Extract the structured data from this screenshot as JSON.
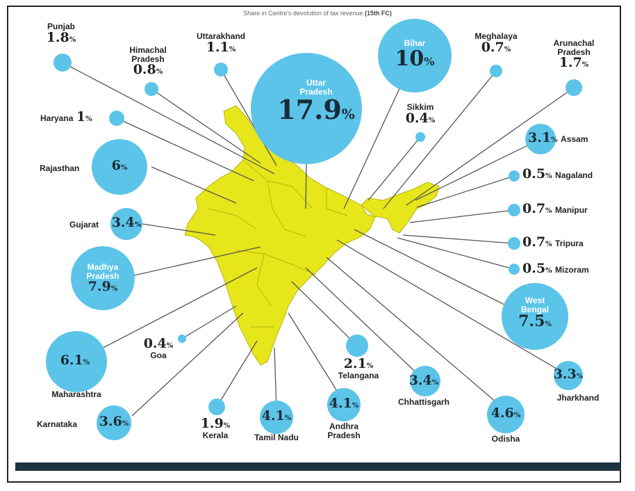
{
  "title": "Share in Centre's devolution of tax revenue",
  "title_tag": "(15th FC)",
  "colors": {
    "bubble": "#5cc4e8",
    "map": "#e6e61a",
    "bar": "#1e3440"
  },
  "states": {
    "punjab": {
      "name": "Punjab",
      "value": "1.8"
    },
    "himachal": {
      "name": "Himachal Pradesh",
      "value": "0.8"
    },
    "uttarakhand": {
      "name": "Uttarakhand",
      "value": "1.1"
    },
    "up": {
      "name": "Uttar Pradesh",
      "value": "17.9"
    },
    "bihar": {
      "name": "Bihar",
      "value": "10"
    },
    "meghalaya": {
      "name": "Meghalaya",
      "value": "0.7"
    },
    "arunachal": {
      "name": "Arunachal Pradesh",
      "value": "1.7"
    },
    "sikkim": {
      "name": "Sikkim",
      "value": "0.4"
    },
    "haryana": {
      "name": "Haryana",
      "value": "1"
    },
    "rajasthan": {
      "name": "Rajasthan",
      "value": "6"
    },
    "gujarat": {
      "name": "Gujarat",
      "value": "3.4"
    },
    "mp": {
      "name": "Madhya Pradesh",
      "value": "7.9"
    },
    "maharashtra": {
      "name": "Maharashtra",
      "value": "6.1"
    },
    "karnataka": {
      "name": "Karnataka",
      "value": "3.6"
    },
    "goa": {
      "name": "Goa",
      "value": "0.4"
    },
    "kerala": {
      "name": "Kerala",
      "value": "1.9"
    },
    "tamilnadu": {
      "name": "Tamil Nadu",
      "value": "4.1"
    },
    "andhra": {
      "name": "Andhra Pradesh",
      "value": "4.1"
    },
    "telangana": {
      "name": "Telangana",
      "value": "2.1"
    },
    "chhattisgarh": {
      "name": "Chhattisgarh",
      "value": "3.4"
    },
    "odisha": {
      "name": "Odisha",
      "value": "4.6"
    },
    "jharkhand": {
      "name": "Jharkhand",
      "value": "3.3"
    },
    "westbengal": {
      "name": "West Bengal",
      "value": "7.5"
    },
    "assam": {
      "name": "Assam",
      "value": "3.1"
    },
    "nagaland": {
      "name": "Nagaland",
      "value": "0.5"
    },
    "manipur": {
      "name": "Manipur",
      "value": "0.7"
    },
    "tripura": {
      "name": "Tripura",
      "value": "0.7"
    },
    "mizoram": {
      "name": "Mizoram",
      "value": "0.5"
    }
  },
  "split_names": {
    "himachal": [
      "Himachal",
      "Pradesh"
    ],
    "up": [
      "Uttar",
      "Pradesh"
    ],
    "arunachal": [
      "Arunachal",
      "Pradesh"
    ],
    "mp": [
      "Madhya",
      "Pradesh"
    ],
    "andhra": [
      "Andhra",
      "Pradesh"
    ],
    "westbengal": [
      "West",
      "Bengal"
    ]
  },
  "pct": "%"
}
